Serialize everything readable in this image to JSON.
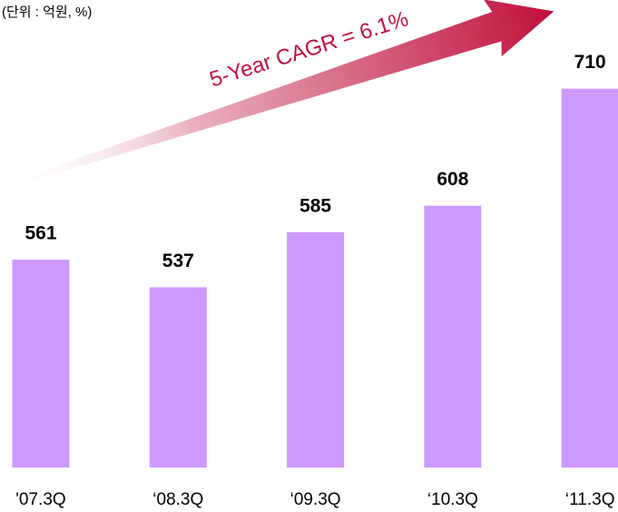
{
  "chart_data": {
    "type": "bar",
    "subtitle": "(단위 : 억원, %)",
    "annotation": "5-Year CAGR = 6.1%",
    "categories": [
      "'07.3Q",
      "‘08.3Q",
      "‘09.3Q",
      "‘10.3Q",
      "‘11.3Q"
    ],
    "values": [
      561,
      537,
      585,
      608,
      710
    ],
    "color": "#cc99ff",
    "ylim": [
      380,
      720
    ]
  }
}
